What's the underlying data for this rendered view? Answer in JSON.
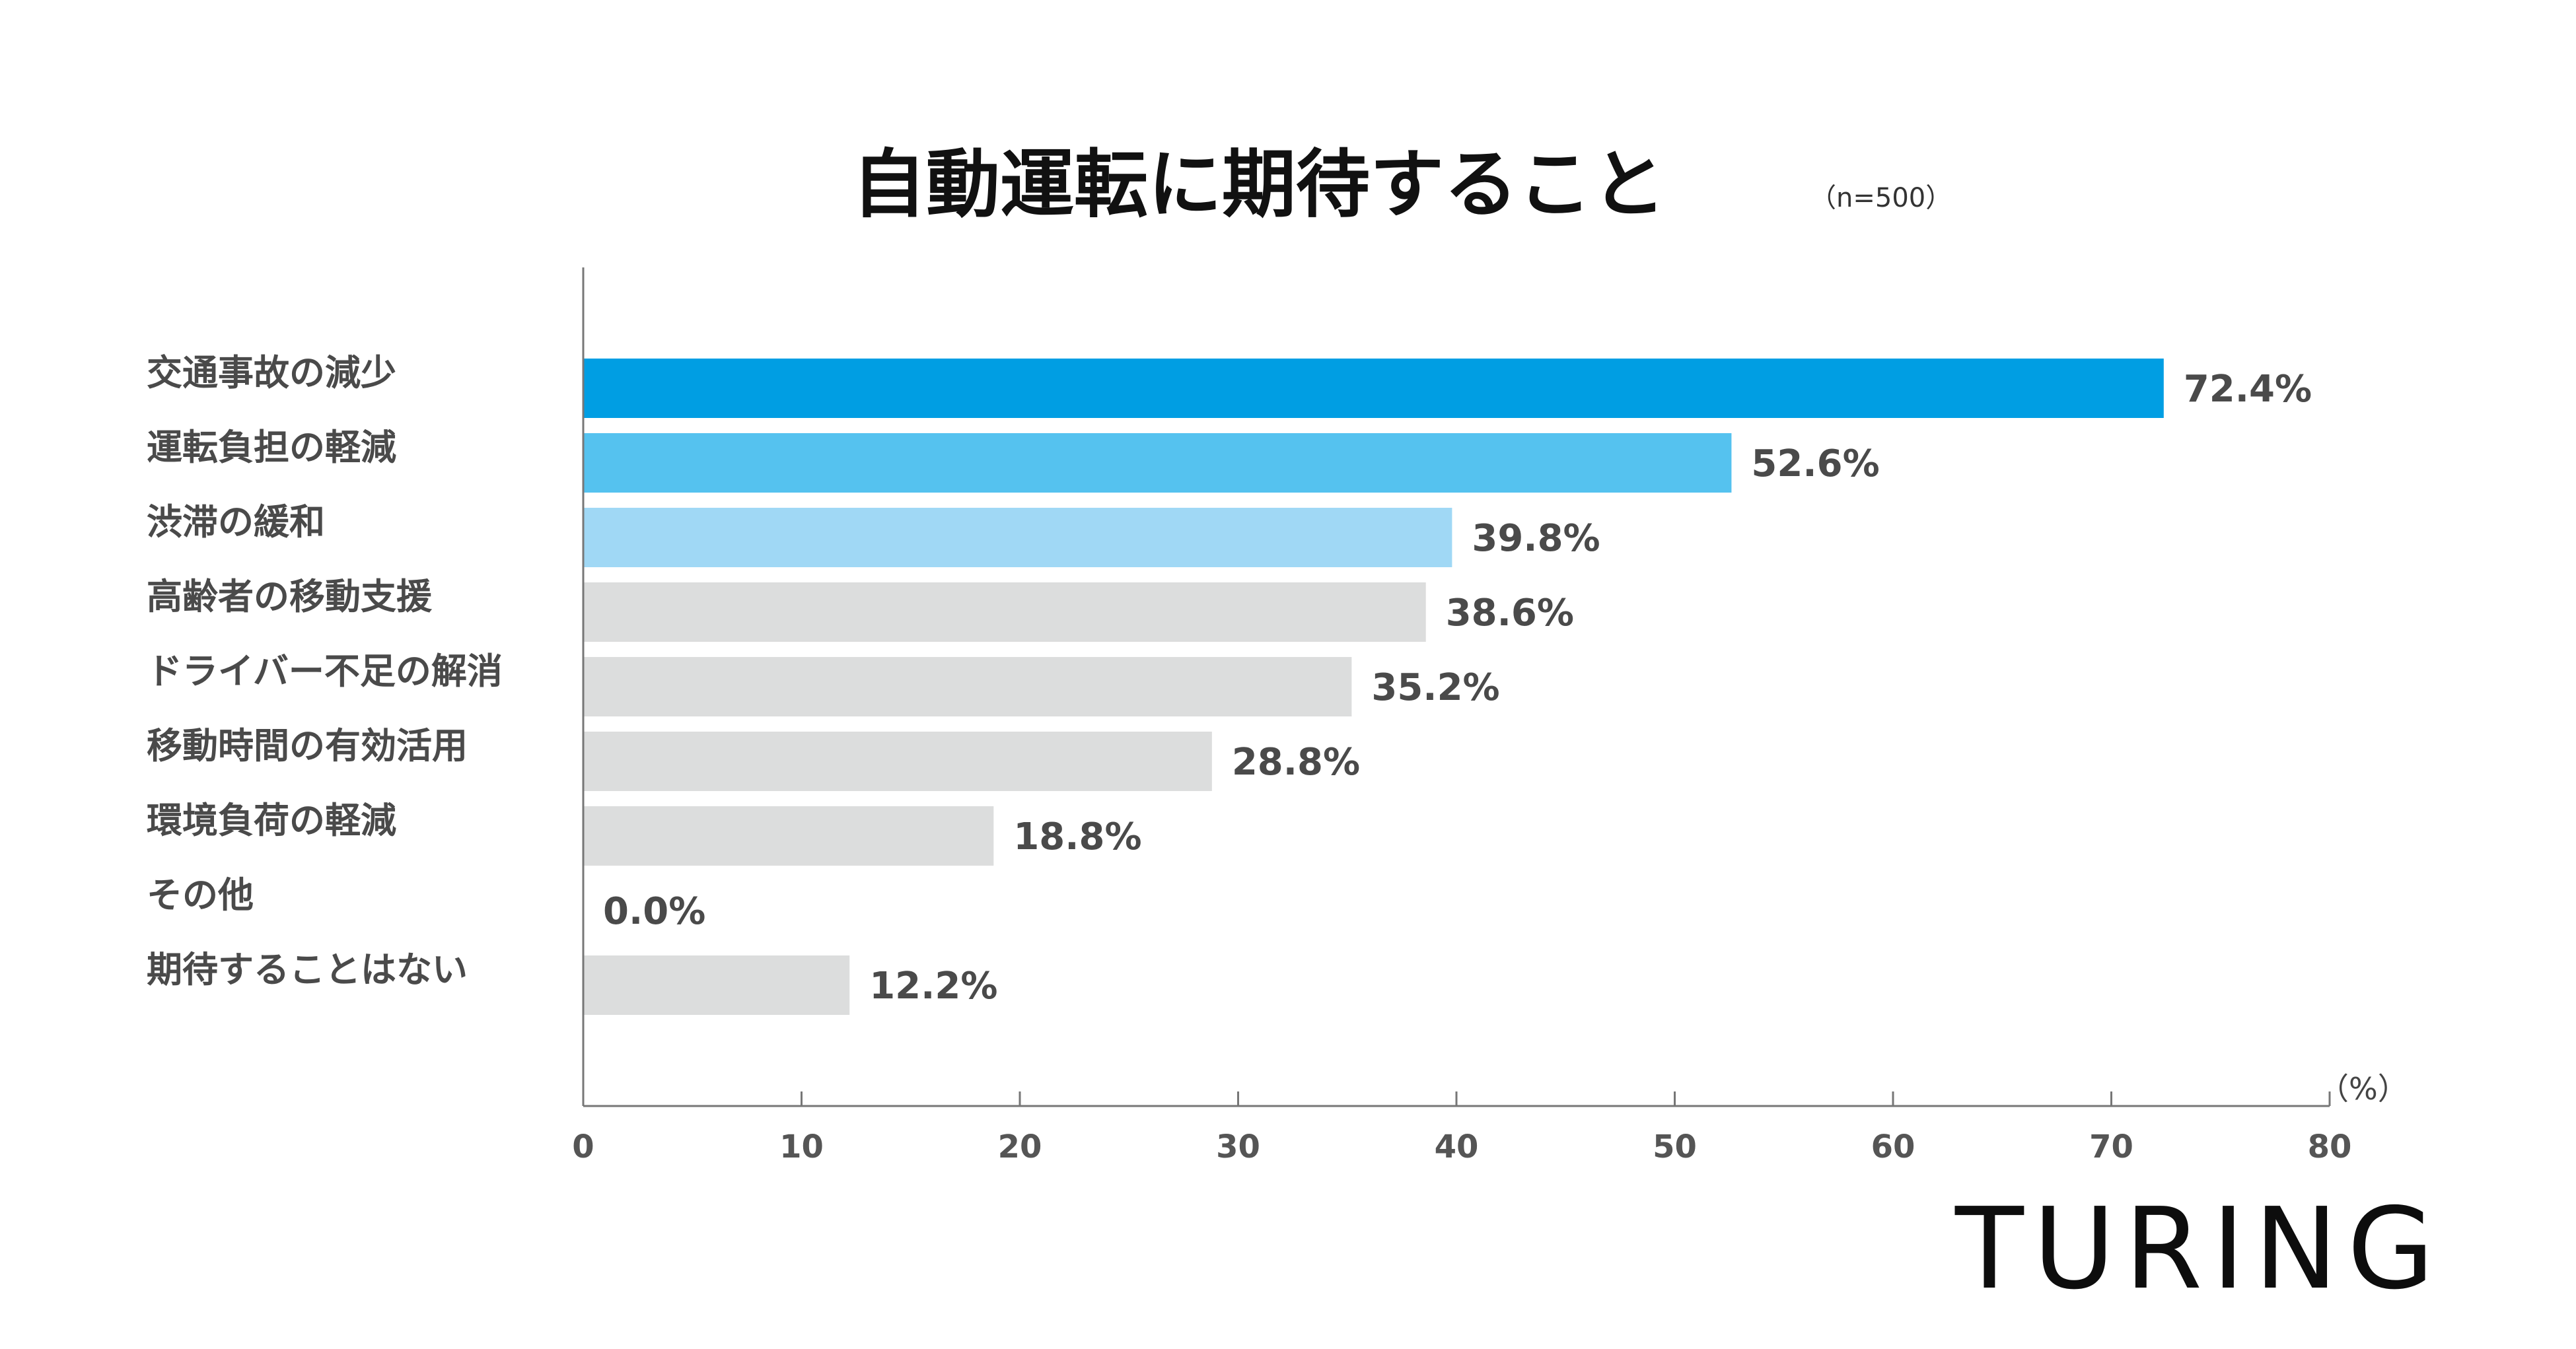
{
  "chart_data": {
    "type": "bar",
    "orientation": "horizontal",
    "title": "自動運転に期待すること",
    "subtitle": "（n=500）",
    "unit_label": "（%）",
    "categories": [
      "交通事故の減少",
      "運転負担の軽減",
      "渋滞の緩和",
      "高齢者の移動支援",
      "ドライバー不足の解消",
      "移動時間の有効活用",
      "環境負荷の軽減",
      "その他",
      "期待することはない"
    ],
    "values": [
      72.4,
      52.6,
      39.8,
      38.6,
      35.2,
      28.8,
      18.8,
      0.0,
      12.2
    ],
    "value_labels": [
      "72.4%",
      "52.6%",
      "39.8%",
      "38.6%",
      "35.2%",
      "28.8%",
      "18.8%",
      "0.0%",
      "12.2%"
    ],
    "bar_colors": [
      "#009ee3",
      "#55c2ef",
      "#a0d8f5",
      "#dcdddd",
      "#dcdddd",
      "#dcdddd",
      "#dcdddd",
      "#dcdddd",
      "#dcdddd"
    ],
    "xlim": [
      0,
      80
    ],
    "xticks": [
      0,
      10,
      20,
      30,
      40,
      50,
      60,
      70,
      80
    ],
    "xtick_labels": [
      "0",
      "10",
      "20",
      "30",
      "40",
      "50",
      "60",
      "70",
      "80"
    ],
    "grid": false,
    "legend": "none"
  },
  "logo": {
    "text": "TURING"
  }
}
